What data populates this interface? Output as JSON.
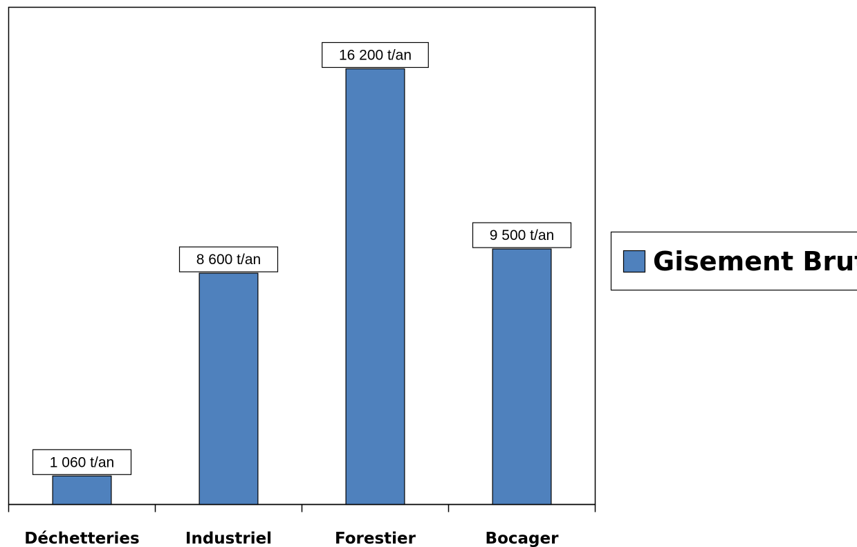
{
  "chart_data": {
    "type": "bar",
    "categories": [
      "Déchetteries",
      "Industriel",
      "Forestier",
      "Bocager"
    ],
    "series": [
      {
        "name": "Gisement Brut",
        "values": [
          1060,
          8600,
          16200,
          9500
        ],
        "data_labels": [
          "1 060 t/an",
          "8 600 t/an",
          "16 200 t/an",
          "9 500 t/an"
        ],
        "color": "#4F81BD"
      }
    ],
    "title": "",
    "xlabel": "",
    "ylabel": "",
    "ylim": [
      0,
      18000
    ],
    "grid": false,
    "legend": {
      "position": "right",
      "entries": [
        "Gisement Brut"
      ]
    }
  }
}
